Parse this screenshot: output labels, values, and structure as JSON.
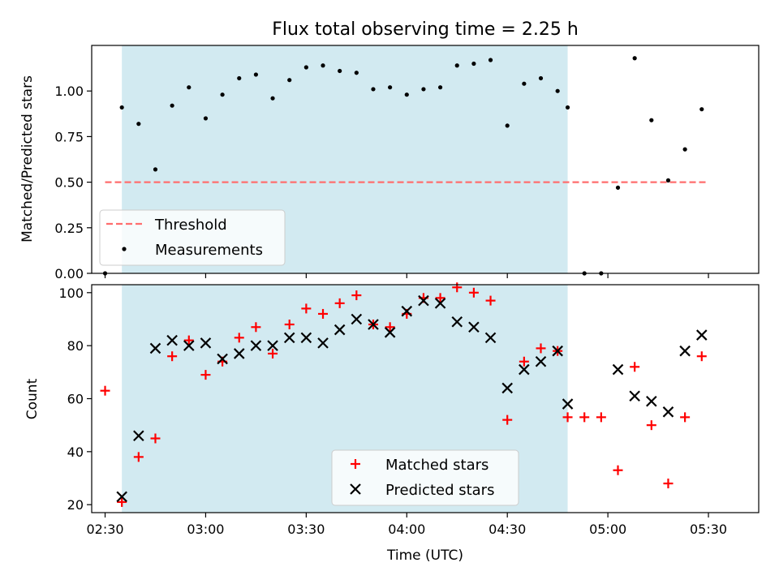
{
  "chart_data": [
    {
      "type": "scatter",
      "title": "Flux total observing time = 2.25 h",
      "ylabel": "Matched/Predicted stars",
      "xlabel": "",
      "ylim": [
        0,
        1.25
      ],
      "x_ticks": [
        "02:30",
        "03:00",
        "03:30",
        "04:00",
        "04:30",
        "05:00",
        "05:30"
      ],
      "y_ticks": [
        "0.00",
        "0.25",
        "0.50",
        "0.75",
        "1.00"
      ],
      "y_tick_values": [
        0,
        0.25,
        0.5,
        0.75,
        1.0
      ],
      "shaded_span": [
        "02:35",
        "04:48"
      ],
      "shade_color": "#add8e6",
      "legend_position": "lower-left",
      "series": [
        {
          "name": "Threshold",
          "kind": "dashed-line",
          "color": "#ff6e6e",
          "x": [
            "02:30",
            "05:30"
          ],
          "y": [
            0.5,
            0.5
          ]
        },
        {
          "name": "Measurements",
          "kind": "dots",
          "color": "#000000",
          "x": [
            "02:30",
            "02:35",
            "02:40",
            "02:45",
            "02:50",
            "02:55",
            "03:00",
            "03:05",
            "03:10",
            "03:15",
            "03:20",
            "03:25",
            "03:30",
            "03:35",
            "03:40",
            "03:45",
            "03:50",
            "03:55",
            "04:00",
            "04:05",
            "04:10",
            "04:15",
            "04:20",
            "04:25",
            "04:30",
            "04:35",
            "04:40",
            "04:45",
            "04:48",
            "04:53",
            "04:58",
            "05:03",
            "05:08",
            "05:13",
            "05:18",
            "05:23",
            "05:28"
          ],
          "y": [
            0.0,
            0.91,
            0.82,
            0.57,
            0.92,
            1.02,
            0.85,
            0.98,
            1.07,
            1.09,
            0.96,
            1.06,
            1.13,
            1.14,
            1.11,
            1.1,
            1.01,
            1.02,
            0.98,
            1.01,
            1.02,
            1.14,
            1.15,
            1.17,
            0.81,
            1.04,
            1.07,
            1.0,
            0.91,
            0.0,
            0.0,
            0.47,
            1.18,
            0.84,
            0.51,
            0.68,
            0.9
          ]
        }
      ]
    },
    {
      "type": "scatter",
      "title": "",
      "ylabel": "Count",
      "xlabel": "Time (UTC)",
      "ylim": [
        17,
        103
      ],
      "x_ticks": [
        "02:30",
        "03:00",
        "03:30",
        "04:00",
        "04:30",
        "05:00",
        "05:30"
      ],
      "y_ticks": [
        "20",
        "40",
        "60",
        "80",
        "100"
      ],
      "y_tick_values": [
        20,
        40,
        60,
        80,
        100
      ],
      "shaded_span": [
        "02:35",
        "04:48"
      ],
      "shade_color": "#add8e6",
      "legend_position": "lower-center",
      "series": [
        {
          "name": "Matched stars",
          "kind": "plus",
          "color": "#ff0000",
          "x": [
            "02:30",
            "02:35",
            "02:40",
            "02:45",
            "02:50",
            "02:55",
            "03:00",
            "03:05",
            "03:10",
            "03:15",
            "03:20",
            "03:25",
            "03:30",
            "03:35",
            "03:40",
            "03:45",
            "03:50",
            "03:55",
            "04:00",
            "04:05",
            "04:10",
            "04:15",
            "04:20",
            "04:25",
            "04:30",
            "04:35",
            "04:40",
            "04:45",
            "04:48",
            "04:53",
            "04:58",
            "05:03",
            "05:08",
            "05:13",
            "05:18",
            "05:23",
            "05:28"
          ],
          "y": [
            63,
            21,
            38,
            45,
            76,
            82,
            69,
            74,
            83,
            87,
            77,
            88,
            94,
            92,
            96,
            99,
            88,
            87,
            92,
            98,
            98,
            102,
            100,
            97,
            52,
            74,
            79,
            78,
            53,
            53,
            53,
            33,
            72,
            50,
            28,
            53,
            76
          ]
        },
        {
          "name": "Predicted stars",
          "kind": "x",
          "color": "#000000",
          "x": [
            "02:35",
            "02:40",
            "02:45",
            "02:50",
            "02:55",
            "03:00",
            "03:05",
            "03:10",
            "03:15",
            "03:20",
            "03:25",
            "03:30",
            "03:35",
            "03:40",
            "03:45",
            "03:50",
            "03:55",
            "04:00",
            "04:05",
            "04:10",
            "04:15",
            "04:20",
            "04:25",
            "04:30",
            "04:35",
            "04:40",
            "04:45",
            "04:48",
            "05:03",
            "05:08",
            "05:13",
            "05:18",
            "05:23",
            "05:28"
          ],
          "y": [
            23,
            46,
            79,
            82,
            80,
            81,
            75,
            77,
            80,
            80,
            83,
            83,
            81,
            86,
            90,
            88,
            85,
            93,
            97,
            96,
            89,
            87,
            83,
            64,
            71,
            74,
            78,
            58,
            71,
            61,
            59,
            55,
            78,
            84
          ]
        }
      ]
    }
  ]
}
